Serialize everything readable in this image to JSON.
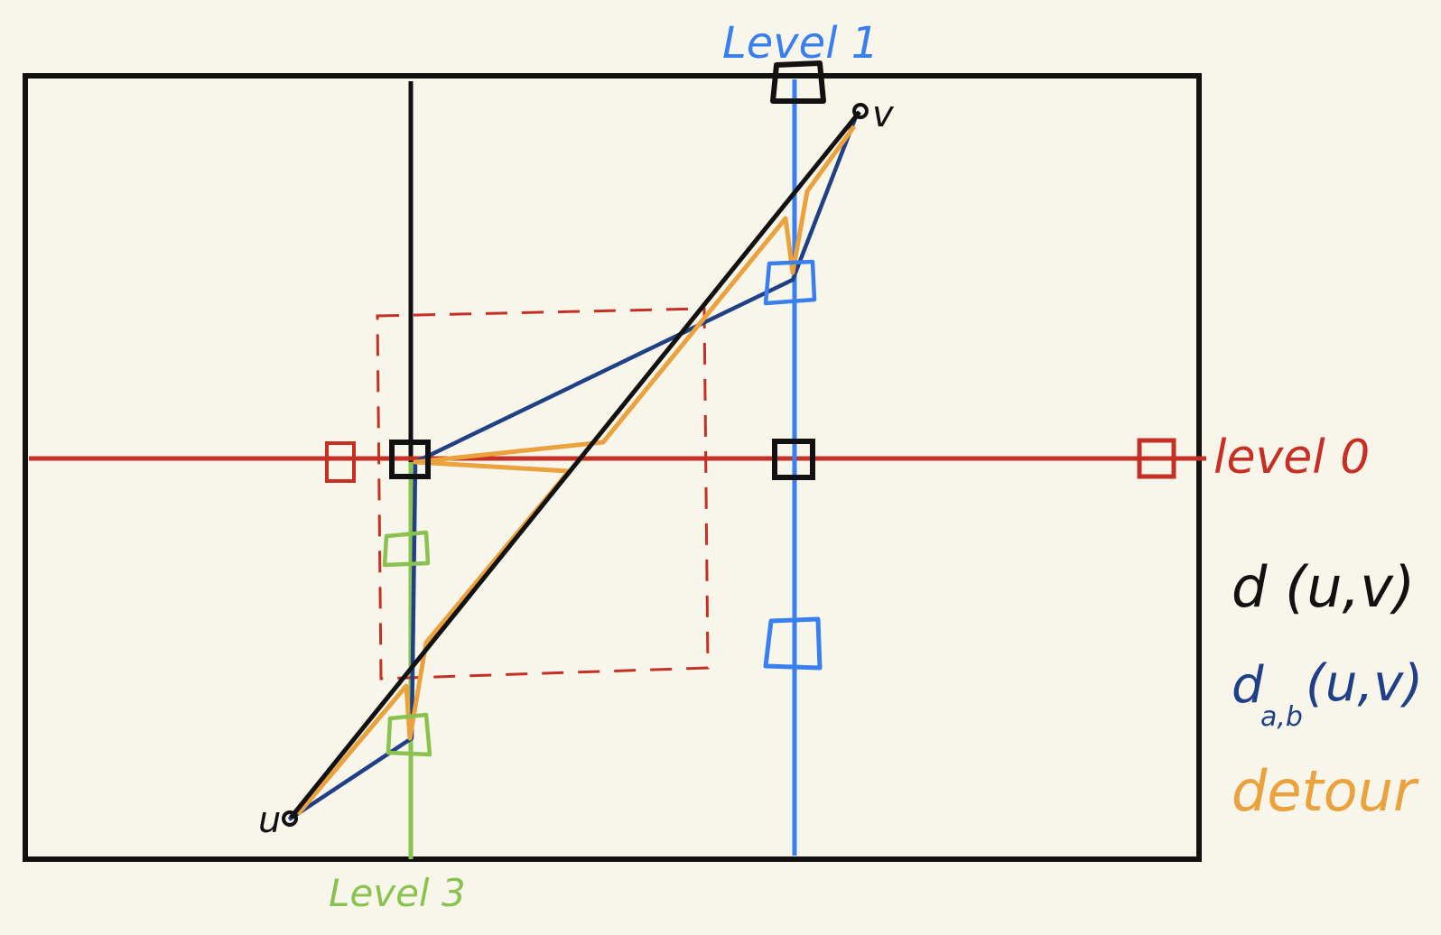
{
  "labels": {
    "level1": "Level 1",
    "level0": "level 0",
    "level3": "Level 3",
    "u": "u",
    "v": "v"
  },
  "legend": {
    "d": "d (u,v)",
    "dab_main": "d",
    "dab_sub": "a,b",
    "dab_args": "(u,v)",
    "detour": "detour"
  },
  "colors": {
    "black": "#111111",
    "level0_red": "#c62f24",
    "level1_blue": "#3a7ff0",
    "level3_green": "#8ac24f",
    "dab_navy": "#1f3f87",
    "detour_orange": "#eba13c",
    "background": "#f8f6ea"
  }
}
